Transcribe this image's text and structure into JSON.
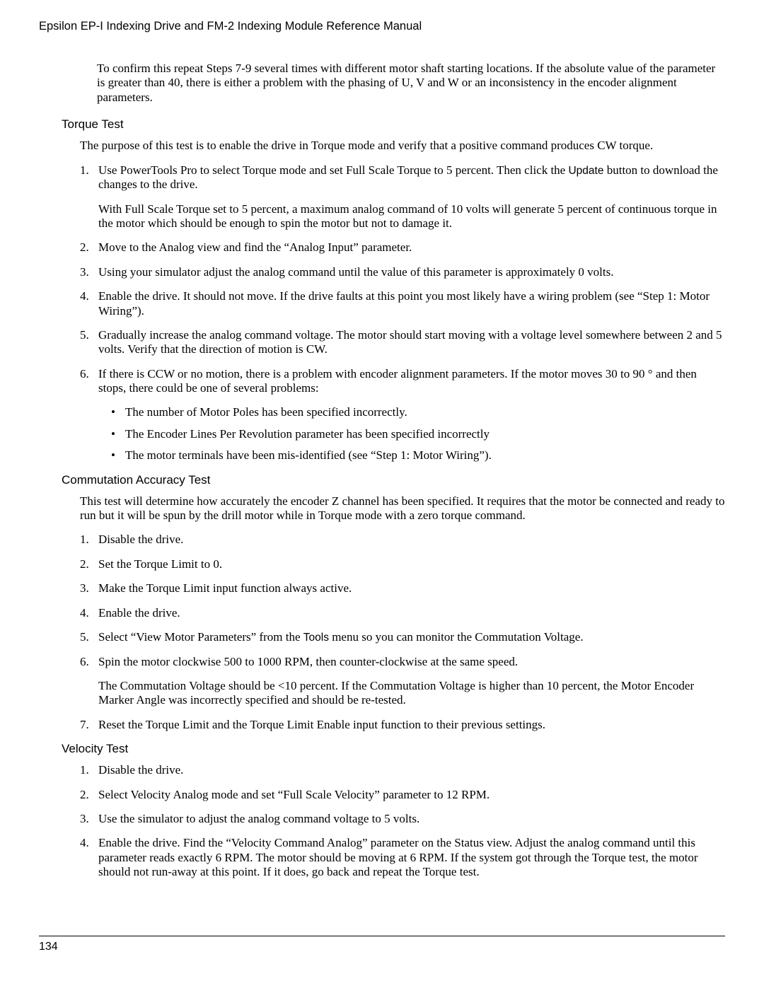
{
  "doc": {
    "title": "Epsilon EP-I Indexing Drive and FM-2 Indexing Module Reference Manual",
    "page_number": "134"
  },
  "top_para": "To confirm this repeat Steps 7-9 several times with different motor shaft starting locations. If the absolute value of the parameter is greater than 40, there is either a problem with the phasing of U, V and W or an inconsistency in the encoder alignment parameters.",
  "sections": {
    "torque": {
      "heading": "Torque Test",
      "intro": "The purpose of this test is to enable the drive in Torque mode and verify that a positive command produces CW torque.",
      "steps": [
        {
          "n": "1.",
          "text_pre": "Use PowerTools Pro to select Torque mode and set Full Scale Torque to 5 percent. Then click the ",
          "sans": "Update",
          "text_post": " button to download the changes to the drive.",
          "extra": "With Full Scale Torque set to 5 percent, a maximum analog command of 10 volts will generate 5 percent of continuous torque in the motor which should be enough to spin the motor but not to damage it."
        },
        {
          "n": "2.",
          "text": "Move to the Analog view and find the “Analog Input” parameter."
        },
        {
          "n": "3.",
          "text": "Using your simulator adjust the analog command until the value of this parameter is approximately 0 volts."
        },
        {
          "n": "4.",
          "text": "Enable the drive. It should not move. If the drive faults at this point you most likely have a wiring problem (see “Step 1: Motor Wiring”)."
        },
        {
          "n": "5.",
          "text": "Gradually increase the analog command voltage. The motor should start moving with a voltage level somewhere between 2 and 5 volts. Verify that the direction of motion is CW."
        },
        {
          "n": "6.",
          "text": "If there is CCW or no motion, there is a problem with encoder alignment parameters. If the motor moves 30 to 90 ° and then stops, there could be one of several problems:",
          "bullets": [
            "The number of Motor Poles has been specified incorrectly.",
            "The Encoder Lines Per Revolution parameter has been specified incorrectly",
            "The motor terminals have been mis-identified (see “Step 1: Motor Wiring”)."
          ]
        }
      ]
    },
    "commutation": {
      "heading": "Commutation Accuracy Test",
      "intro": "This test will determine how accurately the encoder Z channel has been specified. It requires that the motor be connected and ready to run but it will be spun by the drill motor while in Torque mode with a zero torque command.",
      "steps": [
        {
          "n": "1.",
          "text": "Disable the drive."
        },
        {
          "n": "2.",
          "text": "Set the Torque Limit to 0."
        },
        {
          "n": "3.",
          "text": "Make the Torque Limit input function always active."
        },
        {
          "n": "4.",
          "text": "Enable the drive."
        },
        {
          "n": "5.",
          "text_pre": "Select “View Motor Parameters” from the ",
          "sans": "Tools",
          "text_post": " menu so you can monitor the Commutation Voltage."
        },
        {
          "n": "6.",
          "text": "Spin the motor clockwise 500 to 1000 RPM, then counter-clockwise at the same speed.",
          "extra": "The Commutation Voltage should be <10 percent. If the Commutation Voltage is higher than 10 percent, the Motor Encoder Marker Angle was incorrectly specified and should be re-tested."
        },
        {
          "n": "7.",
          "text": "Reset the Torque Limit and the Torque Limit Enable input function to their previous settings."
        }
      ]
    },
    "velocity": {
      "heading": "Velocity Test",
      "steps": [
        {
          "n": "1.",
          "text": "Disable the drive."
        },
        {
          "n": "2.",
          "text": "Select Velocity Analog mode and set “Full Scale Velocity” parameter to 12 RPM."
        },
        {
          "n": "3.",
          "text": "Use the simulator to adjust the analog command voltage to 5 volts."
        },
        {
          "n": "4.",
          "text": "Enable the drive. Find the “Velocity Command Analog” parameter on the Status view. Adjust the analog command until this parameter reads exactly 6 RPM. The motor should be moving at 6 RPM. If the system got through the Torque test, the motor should not run-away at this point. If it does, go back and repeat the Torque test."
        }
      ]
    }
  }
}
